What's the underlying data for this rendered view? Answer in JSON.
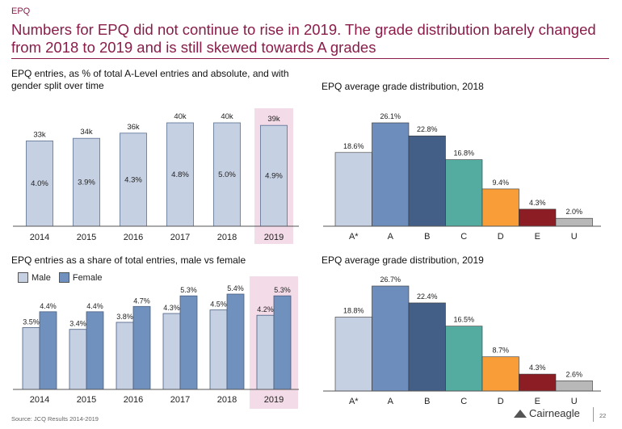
{
  "page": {
    "tag": "EPQ",
    "headline": "Numbers for EPQ did not continue to rise in 2019. The grade distribution barely changed from 2018 to 2019 and is still skewed towards A grades",
    "footer": "Source: JCQ Results 2014-2019",
    "logo": "Cairneagle",
    "page_number": "22"
  },
  "colors": {
    "headline": "#8a1c4a",
    "bar_light": "#c5d0e3",
    "bar_female": "#7090bd",
    "highlight": "#f3dbe7",
    "grades": [
      "#c5d0e3",
      "#6d8dbc",
      "#445f87",
      "#54aba0",
      "#f89d38",
      "#8c1d24",
      "#b8b8b8"
    ]
  },
  "chart_data": [
    {
      "type": "bar",
      "title": "EPQ entries, as % of total A-Level entries and absolute, and with gender split over time",
      "categories": [
        "2014",
        "2015",
        "2016",
        "2017",
        "2018",
        "2019"
      ],
      "series": [
        {
          "values": [
            33,
            34,
            36,
            40,
            40,
            39
          ],
          "labels": [
            "33k",
            "34k",
            "36k",
            "40k",
            "40k",
            "39k"
          ]
        }
      ],
      "inner_labels": [
        "4.0%",
        "3.9%",
        "4.3%",
        "4.8%",
        "5.0%",
        "4.9%"
      ],
      "highlight": "2019",
      "ylim": [
        0,
        40
      ]
    },
    {
      "type": "bar",
      "title": "EPQ average grade distribution, 2018",
      "categories": [
        "A*",
        "A",
        "B",
        "C",
        "D",
        "E",
        "U"
      ],
      "values": [
        18.6,
        26.1,
        22.8,
        16.8,
        9.4,
        4.3,
        2.0
      ],
      "labels": [
        "18.6%",
        "26.1%",
        "22.8%",
        "16.8%",
        "9.4%",
        "4.3%",
        "2.0%"
      ],
      "ylim": [
        0,
        26.1
      ]
    },
    {
      "type": "bar",
      "title": "EPQ entries as a share of total entries, male vs female",
      "categories": [
        "2014",
        "2015",
        "2016",
        "2017",
        "2018",
        "2019"
      ],
      "series": [
        {
          "name": "Male",
          "values": [
            3.5,
            3.4,
            3.8,
            4.3,
            4.5,
            4.2
          ],
          "labels": [
            "3.5%",
            "3.4%",
            "3.8%",
            "4.3%",
            "4.5%",
            "4.2%"
          ]
        },
        {
          "name": "Female",
          "values": [
            4.4,
            4.4,
            4.7,
            5.3,
            5.4,
            5.3
          ],
          "labels": [
            "4.4%",
            "4.4%",
            "4.7%",
            "5.3%",
            "5.4%",
            "5.3%"
          ]
        }
      ],
      "highlight": "2019",
      "legend": "top-left",
      "ylim": [
        0,
        5.4
      ]
    },
    {
      "type": "bar",
      "title": "EPQ average grade distribution, 2019",
      "categories": [
        "A*",
        "A",
        "B",
        "C",
        "D",
        "E",
        "U"
      ],
      "values": [
        18.8,
        26.7,
        22.4,
        16.5,
        8.7,
        4.3,
        2.6
      ],
      "labels": [
        "18.8%",
        "26.7%",
        "22.4%",
        "16.5%",
        "8.7%",
        "4.3%",
        "2.6%"
      ],
      "ylim": [
        0,
        26.7
      ]
    }
  ]
}
